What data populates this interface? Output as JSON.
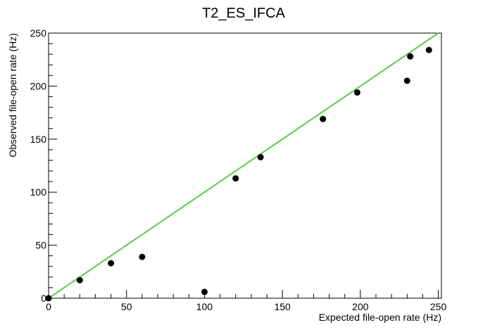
{
  "chart_data": {
    "type": "scatter",
    "title": "T2_ES_IFCA",
    "xlabel": "Expected file-open rate (Hz)",
    "ylabel": "Observed file-open rate (Hz)",
    "xlim": [
      0,
      252
    ],
    "ylim": [
      0,
      250
    ],
    "xticks": [
      0,
      50,
      100,
      150,
      200,
      250
    ],
    "yticks": [
      0,
      50,
      100,
      150,
      200,
      250
    ],
    "grid": false,
    "series": [
      {
        "color": "#000000",
        "points": [
          {
            "x": 0,
            "y": 0
          },
          {
            "x": 20,
            "y": 17
          },
          {
            "x": 40,
            "y": 33
          },
          {
            "x": 60,
            "y": 39
          },
          {
            "x": 100,
            "y": 6
          },
          {
            "x": 120,
            "y": 113
          },
          {
            "x": 136,
            "y": 133
          },
          {
            "x": 176,
            "y": 169
          },
          {
            "x": 198,
            "y": 194
          },
          {
            "x": 230,
            "y": 205
          },
          {
            "x": 232,
            "y": 228
          },
          {
            "x": 244,
            "y": 234
          }
        ]
      }
    ],
    "reference_line": {
      "color": "#5ccc4c",
      "x": [
        0,
        252
      ],
      "y": [
        0,
        252
      ]
    }
  }
}
